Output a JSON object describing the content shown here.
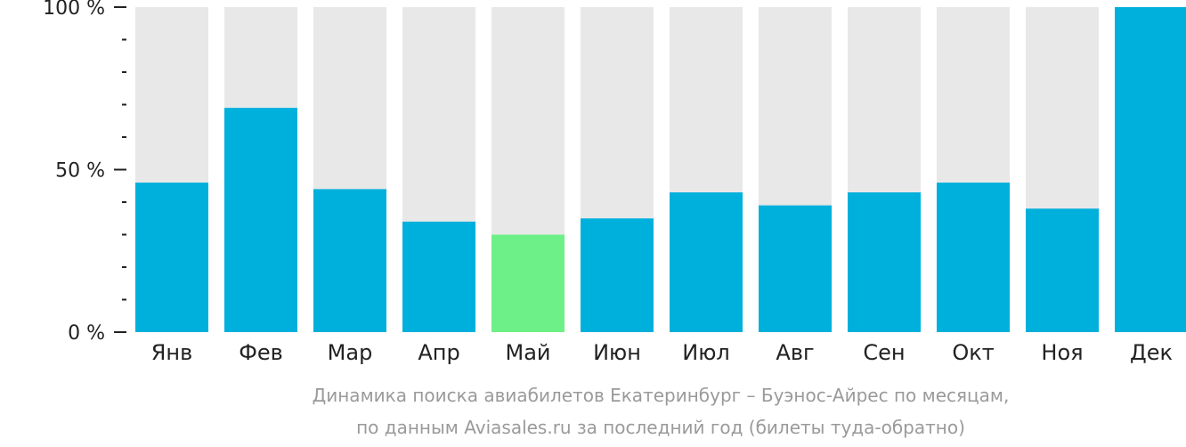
{
  "chart_data": {
    "type": "bar",
    "categories": [
      "Янв",
      "Фев",
      "Мар",
      "Апр",
      "Май",
      "Июн",
      "Июл",
      "Авг",
      "Сен",
      "Окт",
      "Ноя",
      "Дек"
    ],
    "values": [
      46,
      69,
      44,
      34,
      30,
      35,
      43,
      39,
      43,
      46,
      38,
      100
    ],
    "highlight_index": 4,
    "ylim": [
      0,
      100
    ],
    "yticks": [
      {
        "value": 0,
        "label": "0 %"
      },
      {
        "value": 50,
        "label": "50 %"
      },
      {
        "value": 100,
        "label": "100 %"
      }
    ],
    "minor_tick_step": 10,
    "colors": {
      "bar": "#00b0dc",
      "highlight": "#6ef088",
      "background_bar": "#e8e8e8",
      "axis": "#222222",
      "caption": "#9a9a9a"
    },
    "caption": [
      "Динамика поиска авиабилетов Екатеринбург – Буэнос-Айрес по месяцам,",
      "по данным Aviasales.ru за последний год (билеты туда-обратно)"
    ]
  }
}
